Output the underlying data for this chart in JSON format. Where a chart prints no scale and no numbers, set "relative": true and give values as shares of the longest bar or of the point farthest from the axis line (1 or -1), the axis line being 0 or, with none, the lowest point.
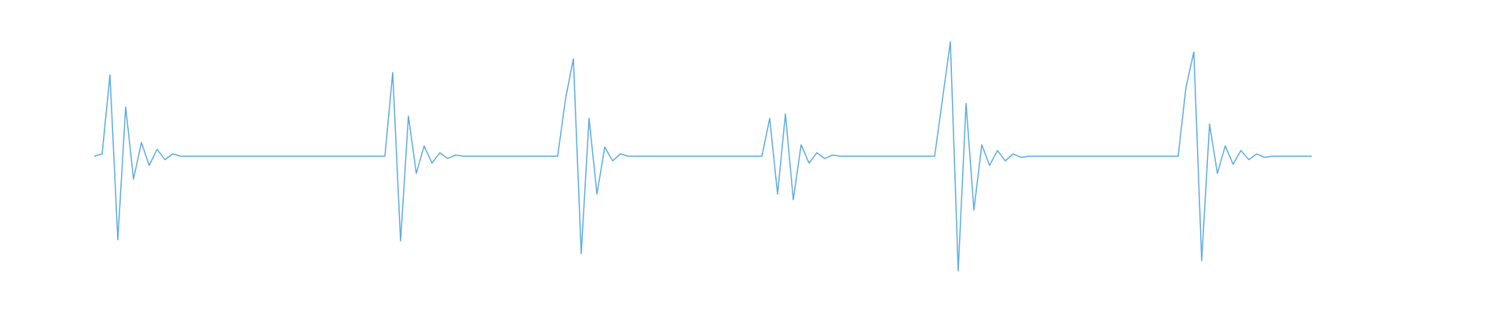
{
  "chart_data": {
    "type": "line",
    "relative": true,
    "categories": [
      null,
      null,
      null,
      null,
      null,
      null,
      null,
      null,
      null,
      null,
      null,
      null,
      null,
      null,
      null,
      null,
      null,
      null,
      null,
      null,
      null,
      null,
      null,
      null,
      null,
      null,
      null,
      null,
      null,
      null,
      null,
      null,
      null,
      null,
      null,
      null,
      null,
      null,
      null,
      null,
      null,
      null,
      null,
      null,
      null,
      null,
      null,
      null,
      null,
      null,
      null,
      null,
      null,
      null,
      null,
      null,
      null,
      null,
      null,
      null,
      null,
      null,
      null,
      null,
      null,
      null,
      null,
      null,
      null,
      null,
      null,
      null,
      null,
      null,
      null,
      null,
      null,
      null,
      null,
      null,
      null,
      null,
      null,
      null,
      null,
      null,
      null,
      null,
      null,
      null,
      null,
      null,
      null,
      null,
      null,
      null,
      null,
      null,
      null,
      null,
      null,
      null,
      null,
      null,
      null,
      null,
      null,
      null,
      null,
      null,
      null,
      null,
      null,
      null,
      null,
      null,
      null,
      null,
      null,
      null,
      null,
      null,
      null,
      null,
      null,
      null,
      null,
      null,
      null,
      null,
      null,
      null,
      null,
      null,
      null,
      null,
      null,
      null,
      null,
      null,
      null,
      null,
      null,
      null,
      null,
      null,
      null,
      null,
      null,
      null,
      null,
      null,
      null,
      null,
      null,
      null
    ],
    "series": [
      {
        "color": "#5dade2",
        "values": [
          0.5,
          0.51,
          0.855,
          0.135,
          0.715,
          0.4,
          0.56,
          0.46,
          0.53,
          0.485,
          0.51,
          0.5,
          0.5,
          0.5,
          0.5,
          0.5,
          0.5,
          0.5,
          0.5,
          0.5,
          0.5,
          0.5,
          0.5,
          0.5,
          0.5,
          0.5,
          0.5,
          0.5,
          0.5,
          0.5,
          0.5,
          0.5,
          0.5,
          0.5,
          0.5,
          0.5,
          0.5,
          0.5,
          0.865,
          0.13,
          0.675,
          0.425,
          0.545,
          0.47,
          0.515,
          0.49,
          0.505,
          0.5,
          0.5,
          0.5,
          0.5,
          0.5,
          0.5,
          0.5,
          0.5,
          0.5,
          0.5,
          0.5,
          0.5,
          0.5,
          0.75,
          0.925,
          0.075,
          0.665,
          0.335,
          0.54,
          0.48,
          0.51,
          0.5,
          0.5,
          0.5,
          0.5,
          0.5,
          0.5,
          0.5,
          0.5,
          0.5,
          0.5,
          0.5,
          0.5,
          0.5,
          0.5,
          0.5,
          0.5,
          0.5,
          0.5,
          0.665,
          0.335,
          0.685,
          0.31,
          0.55,
          0.47,
          0.515,
          0.49,
          0.505,
          0.5,
          0.5,
          0.5,
          0.5,
          0.5,
          0.5,
          0.5,
          0.5,
          0.5,
          0.5,
          0.5,
          0.5,
          0.5,
          0.75,
          1,
          0,
          0.73,
          0.265,
          0.55,
          0.46,
          0.525,
          0.48,
          0.51,
          0.495,
          0.5,
          0.5,
          0.5,
          0.5,
          0.5,
          0.5,
          0.5,
          0.5,
          0.5,
          0.5,
          0.5,
          0.5,
          0.5,
          0.5,
          0.5,
          0.5,
          0.5,
          0.5,
          0.5,
          0.5,
          0.8,
          0.955,
          0.045,
          0.64,
          0.425,
          0.545,
          0.465,
          0.525,
          0.485,
          0.51,
          0.495,
          0.5,
          0.5,
          0.5,
          0.5,
          0.5,
          0.5
        ]
      }
    ]
  }
}
